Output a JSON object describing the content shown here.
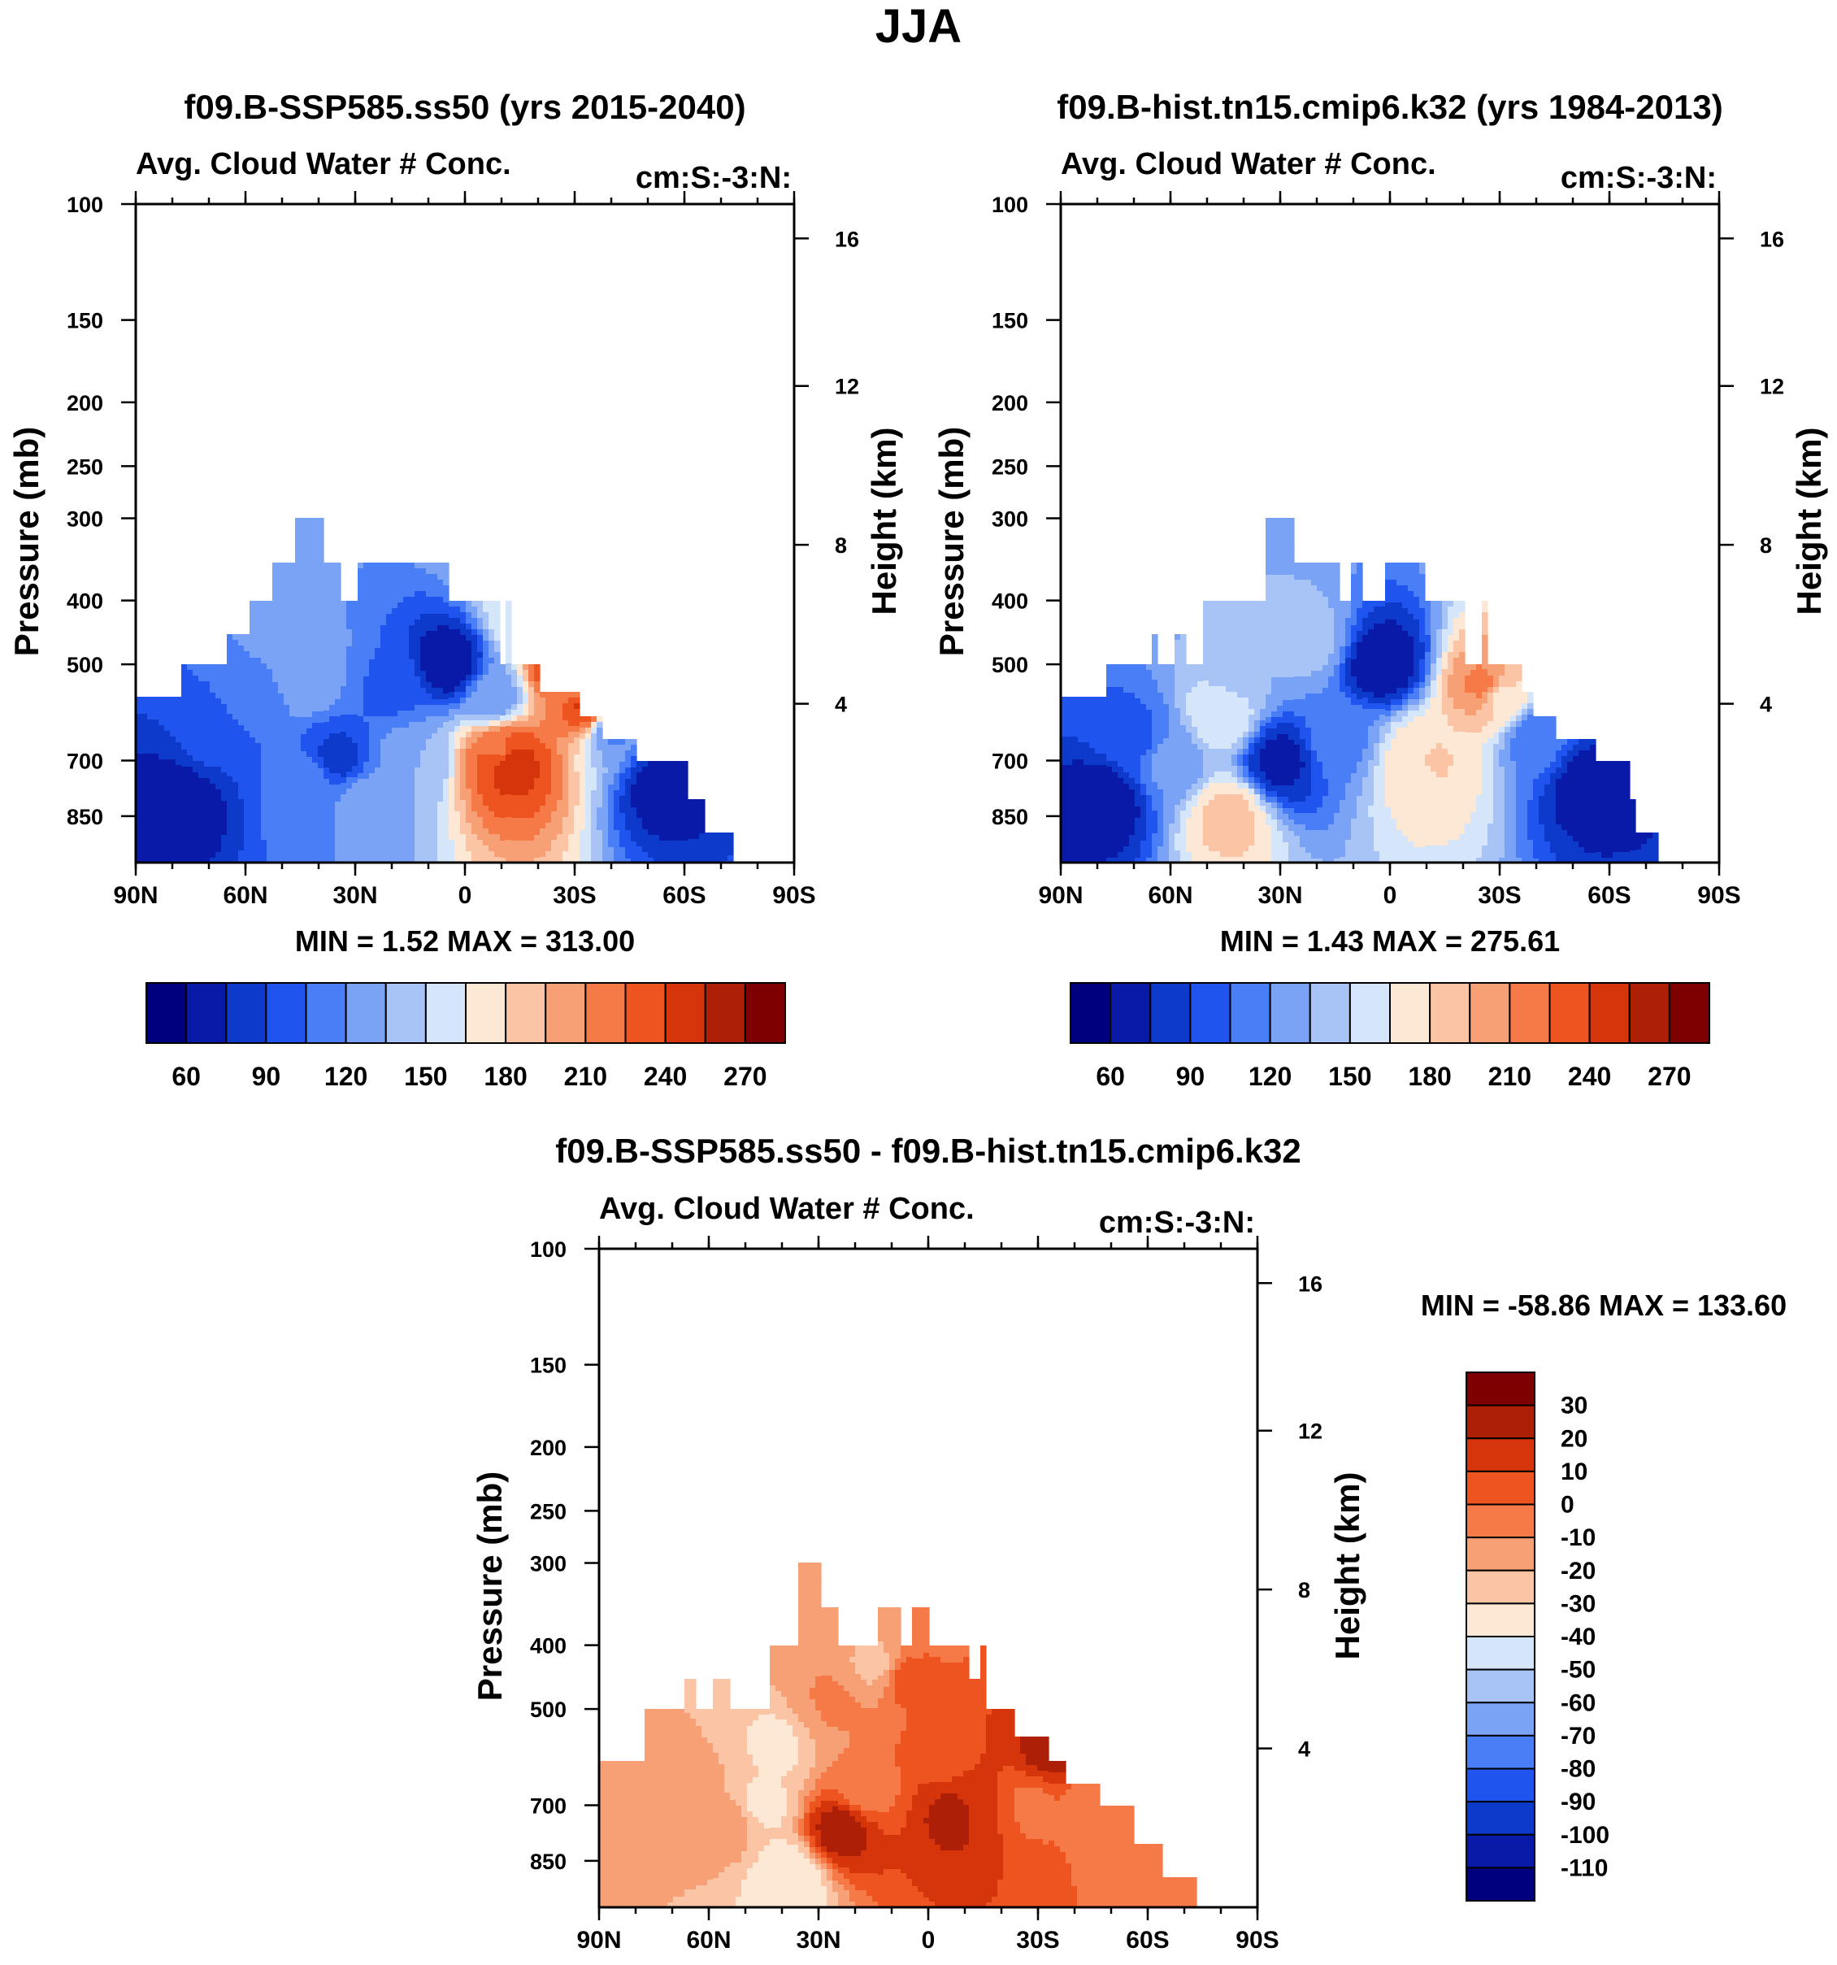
{
  "figure": {
    "title": "JJA"
  },
  "colors": {
    "scale": [
      "#00007f",
      "#0a1aa8",
      "#0e3acc",
      "#1f55ee",
      "#4a7ef7",
      "#7aa3f5",
      "#a8c4f7",
      "#d5e6fa",
      "#fde8d5",
      "#fbc5a5",
      "#f8a075",
      "#f57a48",
      "#ee5420",
      "#d6340a",
      "#ad1f06",
      "#7f0000"
    ]
  },
  "chart_data": [
    {
      "id": "panel-ssp585",
      "type": "heatmap",
      "title": "f09.B-SSP585.ss50 (yrs 2015-2040)",
      "left_label": "Avg. Cloud Water # Conc.",
      "right_label": "cm:S:-3:N:",
      "ylabel": "Pressure (mb)",
      "ylabel_right": "Height (km)",
      "x_ticks": [
        "90N",
        "60N",
        "30N",
        "0",
        "30S",
        "60S",
        "90S"
      ],
      "xlim": [
        90,
        -90
      ],
      "y_ticks": [
        100,
        150,
        200,
        250,
        300,
        400,
        500,
        700,
        850
      ],
      "ylim": [
        100,
        1000
      ],
      "height_ticks": [
        16,
        12,
        8,
        4
      ],
      "stats": "MIN =   1.52   MAX = 313.00",
      "min": 1.52,
      "max": 313.0,
      "colorbar": {
        "orientation": "horizontal",
        "labels": [
          "60",
          "90",
          "120",
          "150",
          "180",
          "210",
          "240",
          "270"
        ],
        "levels": [
          45,
          60,
          75,
          90,
          105,
          120,
          135,
          150,
          165,
          180,
          195,
          210,
          225,
          240,
          255,
          270
        ]
      },
      "profile_top_mb": [
        [
          90,
          560
        ],
        [
          79,
          560
        ],
        [
          78,
          500
        ],
        [
          66,
          500
        ],
        [
          65,
          450
        ],
        [
          60,
          450
        ],
        [
          59,
          400
        ],
        [
          54,
          400
        ],
        [
          53,
          350
        ],
        [
          48,
          350
        ],
        [
          47,
          300
        ],
        [
          40,
          300
        ],
        [
          39,
          350
        ],
        [
          35,
          350
        ],
        [
          34,
          400
        ],
        [
          31,
          400
        ],
        [
          30,
          350
        ],
        [
          26,
          350
        ],
        [
          25,
          400
        ],
        [
          24,
          350
        ],
        [
          5,
          350
        ],
        [
          4,
          400
        ],
        [
          -8,
          400
        ],
        [
          -9,
          500
        ],
        [
          -10,
          500
        ],
        [
          -11,
          400
        ],
        [
          -12,
          500
        ],
        [
          -20,
          500
        ],
        [
          -21,
          550
        ],
        [
          -30,
          550
        ],
        [
          -31,
          600
        ],
        [
          -36,
          600
        ],
        [
          -37,
          650
        ],
        [
          -46,
          650
        ],
        [
          -47,
          700
        ],
        [
          -60,
          700
        ],
        [
          -61,
          800
        ],
        [
          -64,
          800
        ],
        [
          -65,
          900
        ],
        [
          -73,
          900
        ]
      ],
      "field": [
        {
          "lat": 78,
          "mb": 800,
          "v": 48
        },
        {
          "lat": 70,
          "mb": 650,
          "v": 78
        },
        {
          "lat": 58,
          "mb": 560,
          "v": 95
        },
        {
          "lat": 52,
          "mb": 450,
          "v": 108
        },
        {
          "lat": 44,
          "mb": 520,
          "v": 118
        },
        {
          "lat": 42,
          "mb": 760,
          "v": 102
        },
        {
          "lat": 35,
          "mb": 700,
          "v": 70
        },
        {
          "lat": 28,
          "mb": 800,
          "v": 112
        },
        {
          "lat": 20,
          "mb": 550,
          "v": 88
        },
        {
          "lat": 14,
          "mb": 700,
          "v": 120
        },
        {
          "lat": 4,
          "mb": 500,
          "v": 48
        },
        {
          "lat": -8,
          "mb": 560,
          "v": 110
        },
        {
          "lat": -10,
          "mb": 680,
          "v": 205
        },
        {
          "lat": -12,
          "mb": 700,
          "v": 240
        },
        {
          "lat": -16,
          "mb": 420,
          "v": 145
        },
        {
          "lat": -26,
          "mb": 500,
          "v": 240
        },
        {
          "lat": -30,
          "mb": 520,
          "v": 175
        },
        {
          "lat": -34,
          "mb": 580,
          "v": 230
        },
        {
          "lat": -40,
          "mb": 620,
          "v": 100
        },
        {
          "lat": -55,
          "mb": 760,
          "v": 50
        }
      ]
    },
    {
      "id": "panel-hist",
      "type": "heatmap",
      "title": "f09.B-hist.tn15.cmip6.k32 (yrs 1984-2013)",
      "left_label": "Avg. Cloud Water # Conc.",
      "right_label": "cm:S:-3:N:",
      "ylabel": "Pressure (mb)",
      "ylabel_right": "Height (km)",
      "x_ticks": [
        "90N",
        "60N",
        "30N",
        "0",
        "30S",
        "60S",
        "90S"
      ],
      "xlim": [
        90,
        -90
      ],
      "y_ticks": [
        100,
        150,
        200,
        250,
        300,
        400,
        500,
        700,
        850
      ],
      "ylim": [
        100,
        1000
      ],
      "height_ticks": [
        16,
        12,
        8,
        4
      ],
      "stats": "MIN =   1.43   MAX = 275.61",
      "min": 1.43,
      "max": 275.61,
      "colorbar": {
        "orientation": "horizontal",
        "labels": [
          "60",
          "90",
          "120",
          "150",
          "180",
          "210",
          "240",
          "270"
        ],
        "levels": [
          45,
          60,
          75,
          90,
          105,
          120,
          135,
          150,
          165,
          180,
          195,
          210,
          225,
          240,
          255,
          270
        ]
      },
      "profile_top_mb": [
        [
          90,
          560
        ],
        [
          79,
          560
        ],
        [
          78,
          500
        ],
        [
          66,
          500
        ],
        [
          65,
          450
        ],
        [
          64,
          500
        ],
        [
          60,
          500
        ],
        [
          59,
          450
        ],
        [
          57,
          450
        ],
        [
          56,
          500
        ],
        [
          52,
          500
        ],
        [
          51,
          400
        ],
        [
          35,
          400
        ],
        [
          34,
          300
        ],
        [
          27,
          300
        ],
        [
          26,
          350
        ],
        [
          14,
          350
        ],
        [
          13,
          400
        ],
        [
          11,
          400
        ],
        [
          10,
          350
        ],
        [
          8,
          350
        ],
        [
          7,
          400
        ],
        [
          3,
          400
        ],
        [
          2,
          350
        ],
        [
          -8,
          350
        ],
        [
          -9,
          400
        ],
        [
          -20,
          400
        ],
        [
          -21,
          500
        ],
        [
          -24,
          500
        ],
        [
          -25,
          400
        ],
        [
          -26,
          500
        ],
        [
          -35,
          500
        ],
        [
          -36,
          550
        ],
        [
          -38,
          550
        ],
        [
          -39,
          600
        ],
        [
          -44,
          600
        ],
        [
          -45,
          650
        ],
        [
          -55,
          650
        ],
        [
          -56,
          700
        ],
        [
          -64,
          700
        ],
        [
          -65,
          800
        ],
        [
          -66,
          800
        ],
        [
          -67,
          900
        ],
        [
          -73,
          900
        ]
      ],
      "field": [
        {
          "lat": 78,
          "mb": 800,
          "v": 48
        },
        {
          "lat": 70,
          "mb": 650,
          "v": 85
        },
        {
          "lat": 60,
          "mb": 700,
          "v": 110
        },
        {
          "lat": 46,
          "mb": 600,
          "v": 148
        },
        {
          "lat": 44,
          "mb": 850,
          "v": 170
        },
        {
          "lat": 40,
          "mb": 500,
          "v": 120
        },
        {
          "lat": 30,
          "mb": 700,
          "v": 55
        },
        {
          "lat": 22,
          "mb": 460,
          "v": 125
        },
        {
          "lat": 14,
          "mb": 650,
          "v": 100
        },
        {
          "lat": 2,
          "mb": 500,
          "v": 48
        },
        {
          "lat": -9,
          "mb": 700,
          "v": 150
        },
        {
          "lat": -10,
          "mb": 700,
          "v": 175
        },
        {
          "lat": -26,
          "mb": 540,
          "v": 200
        },
        {
          "lat": -30,
          "mb": 560,
          "v": 160
        },
        {
          "lat": -40,
          "mb": 640,
          "v": 95
        },
        {
          "lat": -55,
          "mb": 760,
          "v": 50
        }
      ]
    },
    {
      "id": "panel-diff",
      "type": "heatmap",
      "title": "f09.B-SSP585.ss50 - f09.B-hist.tn15.cmip6.k32",
      "left_label": "Avg. Cloud Water # Conc.",
      "right_label": "cm:S:-3:N:",
      "ylabel": "Pressure (mb)",
      "ylabel_right": "Height (km)",
      "x_ticks": [
        "90N",
        "60N",
        "30N",
        "0",
        "30S",
        "60S",
        "90S"
      ],
      "xlim": [
        90,
        -90
      ],
      "y_ticks": [
        100,
        150,
        200,
        250,
        300,
        400,
        500,
        700,
        850
      ],
      "ylim": [
        100,
        1000
      ],
      "height_ticks": [
        16,
        12,
        8,
        4
      ],
      "stats": "MIN = -58.86   MAX = 133.60",
      "min": -58.86,
      "max": 133.6,
      "colorbar": {
        "orientation": "vertical",
        "labels": [
          "30",
          "20",
          "10",
          "0",
          "-10",
          "-20",
          "-30",
          "-40",
          "-50",
          "-60",
          "-70",
          "-80",
          "-90",
          "-100",
          "-110"
        ],
        "levels": [
          -110,
          -100,
          -90,
          -80,
          -70,
          -60,
          -50,
          -40,
          -30,
          -20,
          -10,
          0,
          10,
          20,
          30
        ]
      },
      "profile_top_mb": [
        [
          90,
          600
        ],
        [
          78,
          600
        ],
        [
          77,
          500
        ],
        [
          67,
          500
        ],
        [
          66,
          450
        ],
        [
          64,
          500
        ],
        [
          60,
          500
        ],
        [
          59,
          450
        ],
        [
          55,
          450
        ],
        [
          54,
          500
        ],
        [
          50,
          500
        ],
        [
          45,
          500
        ],
        [
          44,
          400
        ],
        [
          36,
          400
        ],
        [
          35,
          300
        ],
        [
          30,
          300
        ],
        [
          29,
          350
        ],
        [
          26,
          350
        ],
        [
          25,
          400
        ],
        [
          15,
          400
        ],
        [
          14,
          350
        ],
        [
          9,
          350
        ],
        [
          8,
          400
        ],
        [
          6,
          400
        ],
        [
          5,
          350
        ],
        [
          0,
          350
        ],
        [
          -1,
          400
        ],
        [
          -10,
          400
        ],
        [
          -11,
          450
        ],
        [
          -14,
          450
        ],
        [
          -15,
          400
        ],
        [
          -16,
          500
        ],
        [
          -20,
          500
        ],
        [
          -22,
          500
        ],
        [
          -23,
          550
        ],
        [
          -32,
          550
        ],
        [
          -33,
          600
        ],
        [
          -36,
          600
        ],
        [
          -37,
          650
        ],
        [
          -46,
          650
        ],
        [
          -47,
          700
        ],
        [
          -56,
          700
        ],
        [
          -57,
          800
        ],
        [
          -63,
          800
        ],
        [
          -64,
          900
        ],
        [
          -73,
          900
        ]
      ],
      "field": [
        {
          "lat": 78,
          "mb": 800,
          "v": -20
        },
        {
          "lat": 65,
          "mb": 650,
          "v": -18
        },
        {
          "lat": 55,
          "mb": 750,
          "v": -15
        },
        {
          "lat": 45,
          "mb": 700,
          "v": -32
        },
        {
          "lat": 40,
          "mb": 560,
          "v": -34
        },
        {
          "lat": 38,
          "mb": 900,
          "v": -40
        },
        {
          "lat": 32,
          "mb": 520,
          "v": -20
        },
        {
          "lat": 28,
          "mb": 500,
          "v": -5
        },
        {
          "lat": 24,
          "mb": 760,
          "v": 25
        },
        {
          "lat": 18,
          "mb": 660,
          "v": -6
        },
        {
          "lat": 14,
          "mb": 430,
          "v": -22
        },
        {
          "lat": 6,
          "mb": 450,
          "v": 3
        },
        {
          "lat": -5,
          "mb": 600,
          "v": 8
        },
        {
          "lat": -8,
          "mb": 720,
          "v": 24
        },
        {
          "lat": -14,
          "mb": 700,
          "v": 12
        },
        {
          "lat": -28,
          "mb": 700,
          "v": -2
        },
        {
          "lat": -34,
          "mb": 580,
          "v": 25
        },
        {
          "lat": -45,
          "mb": 680,
          "v": -4
        },
        {
          "lat": -60,
          "mb": 800,
          "v": -5
        }
      ]
    }
  ]
}
